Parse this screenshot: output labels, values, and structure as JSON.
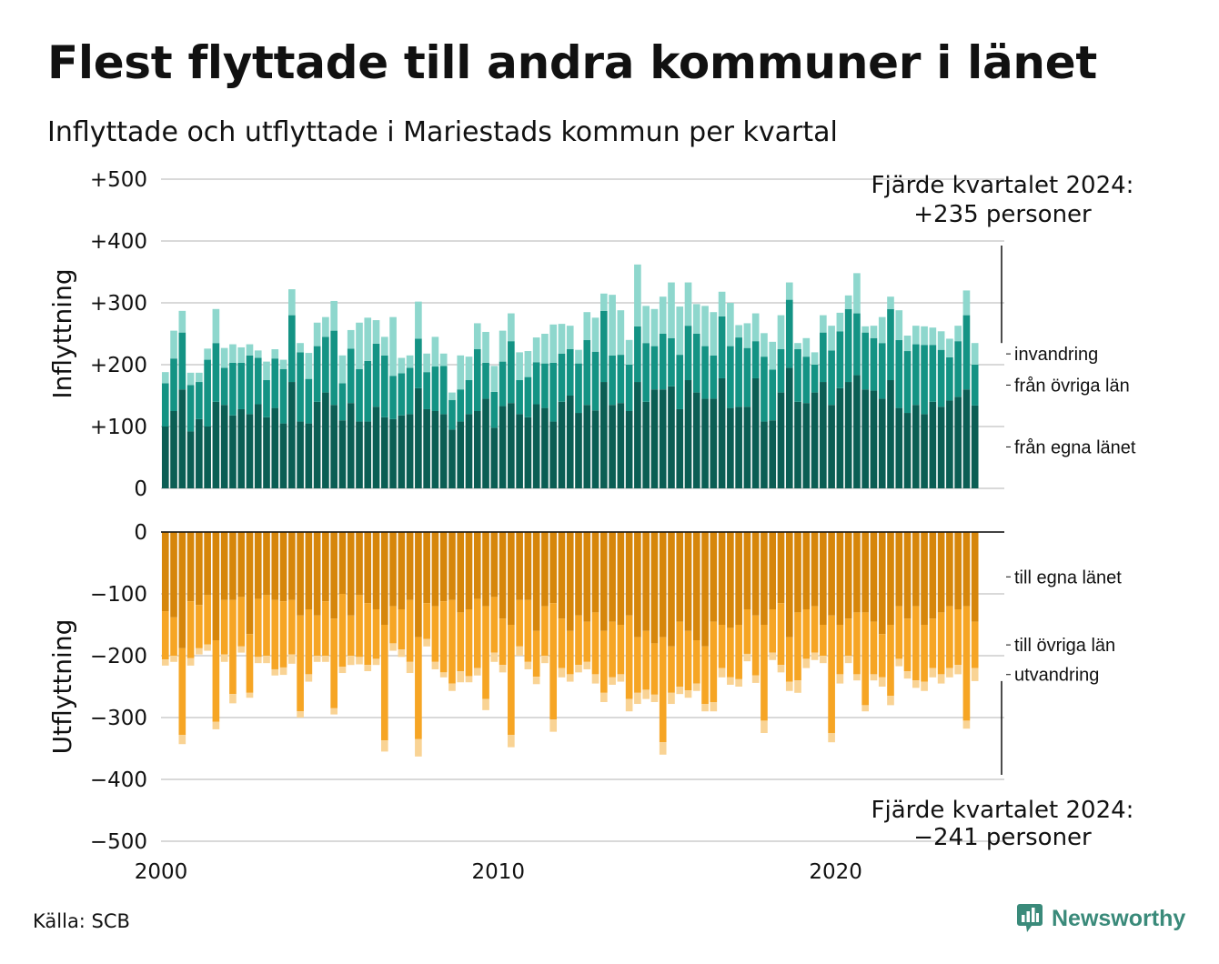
{
  "title": "Flest flyttade till andra kommuner i länet",
  "subtitle": "Inflyttade och utflyttade i Mariestads kommun per kvartal",
  "source": "Källa: SCB",
  "brand": "Newsworthy",
  "colors": {
    "in_own_county": "#0b5e54",
    "in_other_counties": "#149384",
    "in_immigration": "#8ed7cd",
    "out_own_county": "#d6860b",
    "out_other_counties": "#f6a524",
    "out_emigration": "#f9d394",
    "grid": "#d9d9d9",
    "brand": "#3a8a7a"
  },
  "chart_data": [
    {
      "type": "bar",
      "stacked": true,
      "ylabel": "Inflyttning",
      "ylim": [
        0,
        500
      ],
      "yticks": [
        0,
        100,
        200,
        300,
        400,
        500
      ],
      "ytick_labels": [
        "0",
        "+100",
        "+200",
        "+300",
        "+400",
        "+500"
      ],
      "grid": true,
      "xticks": [
        2000,
        2010,
        2020
      ],
      "xtick_labels": [
        "2000",
        "2010",
        "2020"
      ],
      "x_start": 2000.0,
      "x_end": 2025.0,
      "x_step": 0.25,
      "annotation": [
        "Fjärde kvartalet 2024:",
        "+235 personer"
      ],
      "series": [
        {
          "name": "från egna länet",
          "values": [
            100,
            125,
            160,
            92,
            112,
            100,
            140,
            135,
            118,
            128,
            120,
            136,
            115,
            130,
            105,
            172,
            108,
            105,
            140,
            155,
            135,
            110,
            138,
            108,
            108,
            132,
            115,
            112,
            118,
            120,
            162,
            128,
            125,
            120,
            95,
            108,
            120,
            125,
            145,
            98,
            133,
            138,
            120,
            115,
            136,
            130,
            108,
            140,
            150,
            122,
            135,
            126,
            172,
            135,
            138,
            125,
            172,
            140,
            160,
            160,
            165,
            128,
            175,
            155,
            145,
            145,
            178,
            130,
            132,
            132,
            178,
            108,
            110,
            155,
            195,
            140,
            138,
            155,
            172,
            135,
            162,
            172,
            183,
            160,
            158,
            145,
            175,
            130,
            122,
            135,
            120,
            140,
            132,
            142,
            148,
            160,
            134
          ]
        },
        {
          "name": "från övriga län",
          "values": [
            70,
            85,
            92,
            75,
            60,
            108,
            95,
            60,
            85,
            75,
            95,
            75,
            60,
            80,
            88,
            108,
            112,
            72,
            90,
            90,
            120,
            60,
            88,
            85,
            98,
            102,
            100,
            70,
            68,
            75,
            80,
            60,
            72,
            78,
            48,
            52,
            55,
            100,
            58,
            58,
            72,
            100,
            55,
            65,
            68,
            72,
            95,
            78,
            75,
            80,
            105,
            95,
            115,
            80,
            78,
            75,
            90,
            95,
            70,
            90,
            78,
            88,
            88,
            95,
            85,
            70,
            100,
            100,
            112,
            95,
            60,
            105,
            82,
            70,
            110,
            85,
            75,
            45,
            80,
            88,
            92,
            118,
            100,
            92,
            85,
            90,
            115,
            110,
            100,
            98,
            112,
            92,
            92,
            70,
            90,
            120,
            66
          ]
        },
        {
          "name": "invandring",
          "values": [
            18,
            45,
            35,
            20,
            15,
            18,
            55,
            32,
            30,
            25,
            18,
            12,
            30,
            15,
            15,
            42,
            15,
            42,
            38,
            32,
            48,
            45,
            30,
            75,
            70,
            38,
            30,
            95,
            25,
            20,
            60,
            30,
            48,
            20,
            12,
            55,
            38,
            42,
            50,
            42,
            50,
            45,
            45,
            42,
            40,
            48,
            62,
            48,
            38,
            22,
            45,
            55,
            28,
            98,
            72,
            40,
            100,
            60,
            60,
            60,
            90,
            78,
            70,
            48,
            65,
            70,
            40,
            70,
            20,
            40,
            45,
            38,
            45,
            55,
            28,
            10,
            30,
            20,
            28,
            40,
            30,
            22,
            65,
            10,
            20,
            42,
            20,
            48,
            25,
            30,
            30,
            28,
            30,
            30,
            25,
            40,
            35
          ]
        }
      ]
    },
    {
      "type": "bar",
      "stacked": true,
      "ylabel": "Utflyttning",
      "ylim": [
        -500,
        0
      ],
      "yticks": [
        0,
        -100,
        -200,
        -300,
        -400,
        -500
      ],
      "ytick_labels": [
        "0",
        "−100",
        "−200",
        "−300",
        "−400",
        "−500"
      ],
      "grid": true,
      "xticks": [
        2000,
        2010,
        2020
      ],
      "xtick_labels": [
        "2000",
        "2010",
        "2020"
      ],
      "x_start": 2000.0,
      "x_end": 2025.0,
      "x_step": 0.25,
      "annotation": [
        "Fjärde kvartalet 2024:",
        "−241 personer"
      ],
      "series": [
        {
          "name": "till egna länet",
          "values": [
            -128,
            -138,
            -188,
            -112,
            -118,
            -102,
            -175,
            -110,
            -110,
            -105,
            -165,
            -108,
            -102,
            -110,
            -112,
            -110,
            -135,
            -125,
            -135,
            -112,
            -140,
            -100,
            -135,
            -102,
            -115,
            -125,
            -150,
            -120,
            -125,
            -110,
            -170,
            -115,
            -120,
            -112,
            -110,
            -130,
            -125,
            -108,
            -120,
            -105,
            -140,
            -150,
            -110,
            -110,
            -160,
            -120,
            -115,
            -140,
            -160,
            -135,
            -145,
            -130,
            -160,
            -145,
            -150,
            -135,
            -170,
            -160,
            -180,
            -170,
            -185,
            -145,
            -160,
            -175,
            -185,
            -145,
            -150,
            -155,
            -150,
            -125,
            -135,
            -150,
            -125,
            -115,
            -170,
            -130,
            -125,
            -120,
            -150,
            -135,
            -150,
            -140,
            -130,
            -130,
            -145,
            -165,
            -150,
            -120,
            -140,
            -120,
            -150,
            -140,
            -130,
            -120,
            -125,
            -120,
            -145
          ]
        },
        {
          "name": "till övriga län",
          "values": [
            -78,
            -62,
            -140,
            -92,
            -70,
            -80,
            -132,
            -88,
            -152,
            -80,
            -95,
            -94,
            -98,
            -112,
            -107,
            -88,
            -155,
            -105,
            -65,
            -88,
            -145,
            -118,
            -65,
            -100,
            -100,
            -80,
            -187,
            -60,
            -65,
            -100,
            -165,
            -58,
            -90,
            -115,
            -135,
            -95,
            -108,
            -112,
            -150,
            -90,
            -75,
            -178,
            -75,
            -100,
            -74,
            -80,
            -188,
            -80,
            -70,
            -80,
            -65,
            -100,
            -100,
            -90,
            -80,
            -135,
            -90,
            -95,
            -83,
            -170,
            -75,
            -105,
            -96,
            -70,
            -93,
            -130,
            -70,
            -80,
            -88,
            -72,
            -97,
            -155,
            -70,
            -100,
            -72,
            -110,
            -80,
            -75,
            -50,
            -190,
            -80,
            -60,
            -100,
            -150,
            -85,
            -70,
            -115,
            -85,
            -85,
            -120,
            -92,
            -80,
            -100,
            -100,
            -90,
            -185,
            -75
          ]
        },
        {
          "name": "utvandring",
          "values": [
            -10,
            -10,
            -15,
            -12,
            -10,
            -10,
            -12,
            -12,
            -15,
            -10,
            -8,
            -10,
            -12,
            -10,
            -12,
            -15,
            -10,
            -12,
            -10,
            -10,
            -10,
            -10,
            -15,
            -12,
            -10,
            -10,
            -18,
            -12,
            -12,
            -18,
            -28,
            -12,
            -12,
            -8,
            -12,
            -18,
            -10,
            -12,
            -18,
            -15,
            -12,
            -20,
            -15,
            -12,
            -12,
            -12,
            -20,
            -15,
            -12,
            -12,
            -12,
            -15,
            -15,
            -12,
            -12,
            -20,
            -18,
            -15,
            -12,
            -20,
            -18,
            -12,
            -12,
            -12,
            -12,
            -15,
            -15,
            -12,
            -12,
            -12,
            -12,
            -20,
            -12,
            -12,
            -15,
            -20,
            -15,
            -12,
            -12,
            -15,
            -15,
            -12,
            -10,
            -10,
            -10,
            -15,
            -15,
            -12,
            -12,
            -12,
            -15,
            -15,
            -15,
            -15,
            -15,
            -13,
            -21
          ]
        }
      ]
    }
  ]
}
